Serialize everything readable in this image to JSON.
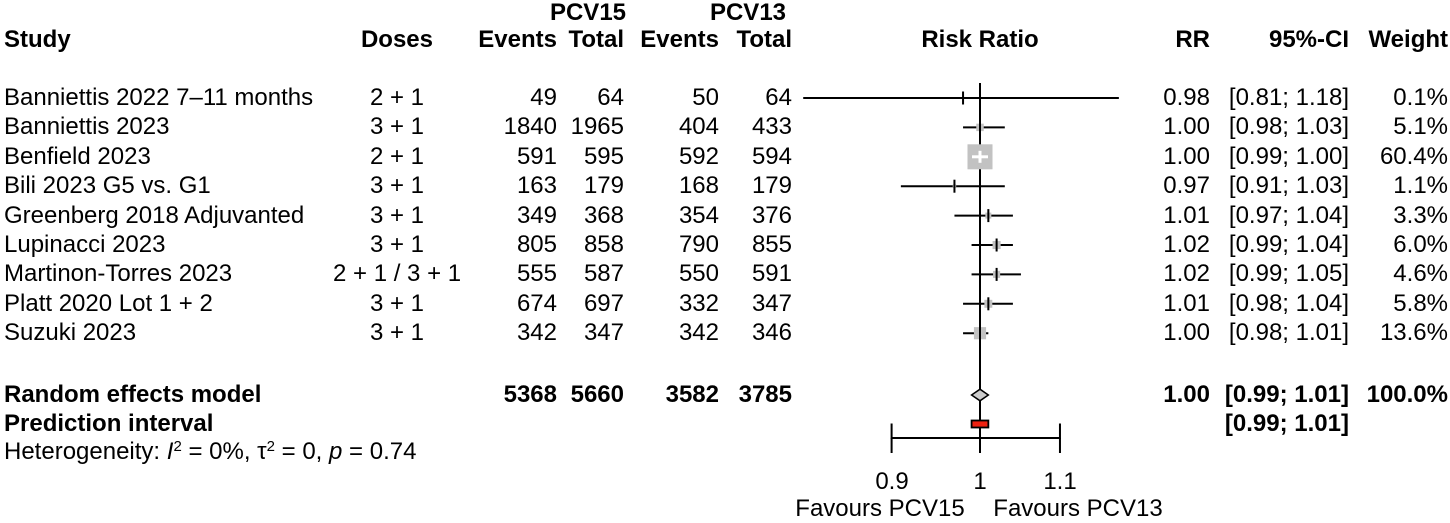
{
  "header": {
    "study": "Study",
    "doses": "Doses",
    "group1": "PCV15",
    "group2": "PCV13",
    "events1": "Events",
    "total1": "Total",
    "events2": "Events",
    "total2": "Total",
    "risk_ratio": "Risk Ratio",
    "rr": "RR",
    "ci": "95%-CI",
    "weight": "Weight"
  },
  "colors": {
    "square": "#c2c2c2",
    "diamond_fill": "#cccccc",
    "prediction_bar": "#ee2211",
    "line": "#000000"
  },
  "chart_data": {
    "type": "forest",
    "x_scale": "log",
    "axis": {
      "tick_values": [
        0.9,
        1,
        1.1
      ],
      "tick_labels": [
        "0.9",
        "1",
        "1.1"
      ],
      "range_low": 0.9,
      "range_high": 1.1,
      "ref_value": 1
    },
    "favours_left": "Favours PCV15",
    "favours_right": "Favours PCV13",
    "studies": [
      {
        "name": "Banniettis 2022 7–11 months",
        "doses": "2 + 1",
        "events1": "49",
        "total1": "64",
        "events2": "50",
        "total2": "64",
        "rr": 0.98,
        "ci_low": 0.81,
        "ci_high": 1.18,
        "rr_label": "0.98",
        "ci_label": "[0.81; 1.18]",
        "weight": 0.1,
        "weight_label": "0.1%"
      },
      {
        "name": "Banniettis 2023",
        "doses": "3 + 1",
        "events1": "1840",
        "total1": "1965",
        "events2": "404",
        "total2": "433",
        "rr": 1.0,
        "ci_low": 0.98,
        "ci_high": 1.03,
        "rr_label": "1.00",
        "ci_label": "[0.98; 1.03]",
        "weight": 5.1,
        "weight_label": "5.1%"
      },
      {
        "name": "Benfield 2023",
        "doses": "2 + 1",
        "events1": "591",
        "total1": "595",
        "events2": "592",
        "total2": "594",
        "rr": 1.0,
        "ci_low": 0.99,
        "ci_high": 1.0,
        "rr_label": "1.00",
        "ci_label": "[0.99; 1.00]",
        "weight": 60.4,
        "weight_label": "60.4%"
      },
      {
        "name": "Bili 2023 G5 vs. G1",
        "doses": "3 + 1",
        "events1": "163",
        "total1": "179",
        "events2": "168",
        "total2": "179",
        "rr": 0.97,
        "ci_low": 0.91,
        "ci_high": 1.03,
        "rr_label": "0.97",
        "ci_label": "[0.91; 1.03]",
        "weight": 1.1,
        "weight_label": "1.1%"
      },
      {
        "name": "Greenberg 2018 Adjuvanted",
        "doses": "3 + 1",
        "events1": "349",
        "total1": "368",
        "events2": "354",
        "total2": "376",
        "rr": 1.01,
        "ci_low": 0.97,
        "ci_high": 1.04,
        "rr_label": "1.01",
        "ci_label": "[0.97; 1.04]",
        "weight": 3.3,
        "weight_label": "3.3%"
      },
      {
        "name": "Lupinacci 2023",
        "doses": "3 + 1",
        "events1": "805",
        "total1": "858",
        "events2": "790",
        "total2": "855",
        "rr": 1.02,
        "ci_low": 0.99,
        "ci_high": 1.04,
        "rr_label": "1.02",
        "ci_label": "[0.99; 1.04]",
        "weight": 6.0,
        "weight_label": "6.0%"
      },
      {
        "name": "Martinon-Torres 2023",
        "doses": "2 + 1 / 3 + 1",
        "events1": "555",
        "total1": "587",
        "events2": "550",
        "total2": "591",
        "rr": 1.02,
        "ci_low": 0.99,
        "ci_high": 1.05,
        "rr_label": "1.02",
        "ci_label": "[0.99; 1.05]",
        "weight": 4.6,
        "weight_label": "4.6%"
      },
      {
        "name": "Platt 2020 Lot 1 + 2",
        "doses": "3 + 1",
        "events1": "674",
        "total1": "697",
        "events2": "332",
        "total2": "347",
        "rr": 1.01,
        "ci_low": 0.98,
        "ci_high": 1.04,
        "rr_label": "1.01",
        "ci_label": "[0.98; 1.04]",
        "weight": 5.8,
        "weight_label": "5.8%"
      },
      {
        "name": "Suzuki 2023",
        "doses": "3 + 1",
        "events1": "342",
        "total1": "347",
        "events2": "342",
        "total2": "346",
        "rr": 1.0,
        "ci_low": 0.98,
        "ci_high": 1.01,
        "rr_label": "1.00",
        "ci_label": "[0.98; 1.01]",
        "weight": 13.6,
        "weight_label": "13.6%"
      }
    ],
    "summary": {
      "label": "Random effects model",
      "events1": "5368",
      "total1": "5660",
      "events2": "3582",
      "total2": "3785",
      "rr": 1.0,
      "ci_low": 0.99,
      "ci_high": 1.01,
      "rr_label": "1.00",
      "ci_label": "[0.99; 1.01]",
      "weight_label": "100.0%"
    },
    "prediction": {
      "label": "Prediction interval",
      "ci_low": 0.99,
      "ci_high": 1.01,
      "ci_label": "[0.99; 1.01]"
    },
    "heterogeneity": {
      "label": "Heterogeneity: ",
      "i_sym": "I",
      "sup": "2",
      "seg_i": " = 0%, ",
      "tau_sym": "τ",
      "seg_tau": " = 0, ",
      "p_sym": "p",
      "seg_p": " = 0.74"
    }
  }
}
